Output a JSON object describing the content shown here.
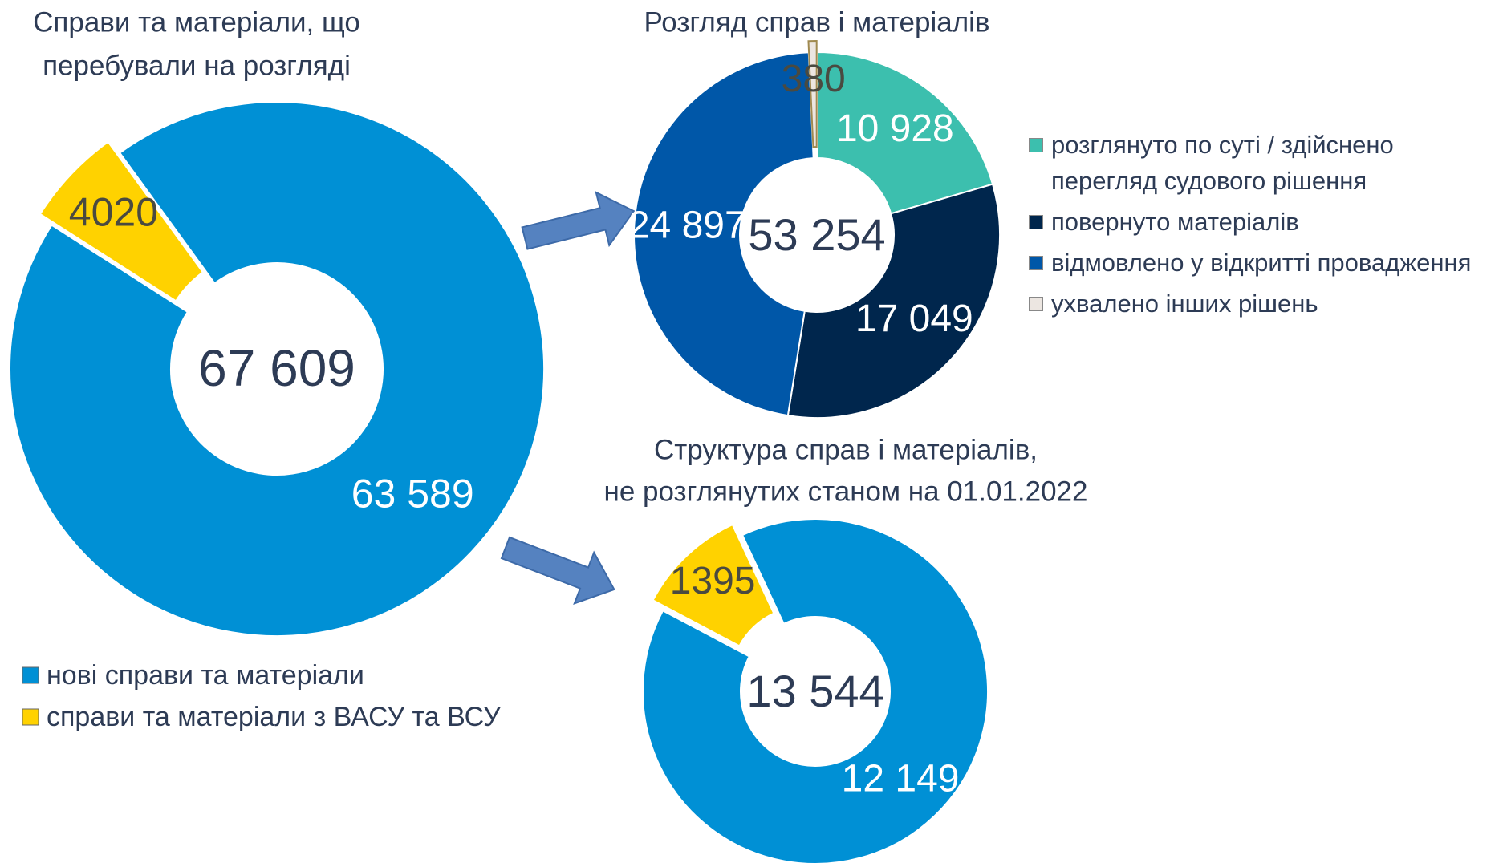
{
  "chart_data": [
    {
      "type": "donut",
      "title": [
        "Справи та матеріали, що",
        "перебували на розгляді"
      ],
      "center_label": "67 609",
      "categories": [
        "нові справи та матеріали",
        "справи та матеріали з ВАСУ та ВСУ"
      ],
      "values": [
        63589,
        4020
      ],
      "value_labels": [
        "63 589",
        "4020"
      ],
      "colors": [
        "#0090d5",
        "#ffd200"
      ],
      "explode": [
        false,
        true
      ]
    },
    {
      "type": "donut",
      "title": [
        "Розгляд справ і матеріалів"
      ],
      "center_label": "53 254",
      "categories": [
        "розглянуто по суті / здійснено\nперегляд судового рішення",
        "повернуто матеріалів",
        "відмовлено у відкритті провадження",
        "ухвалено інших рішень"
      ],
      "values": [
        10928,
        17049,
        24897,
        380
      ],
      "value_labels": [
        "10 928",
        "17 049",
        "24 897",
        "380"
      ],
      "colors": [
        "#3cbfae",
        "#00264d",
        "#0057a8",
        "#ece6e1"
      ],
      "explode": [
        false,
        false,
        false,
        true
      ]
    },
    {
      "type": "donut",
      "title": [
        "Структура справ і матеріалів,",
        "не розглянутих станом на 01.01.2022"
      ],
      "center_label": "13 544",
      "values": [
        12149,
        1395
      ],
      "value_labels": [
        "12 149",
        "1395"
      ],
      "colors": [
        "#0090d5",
        "#ffd200"
      ],
      "explode": [
        false,
        true
      ]
    }
  ]
}
